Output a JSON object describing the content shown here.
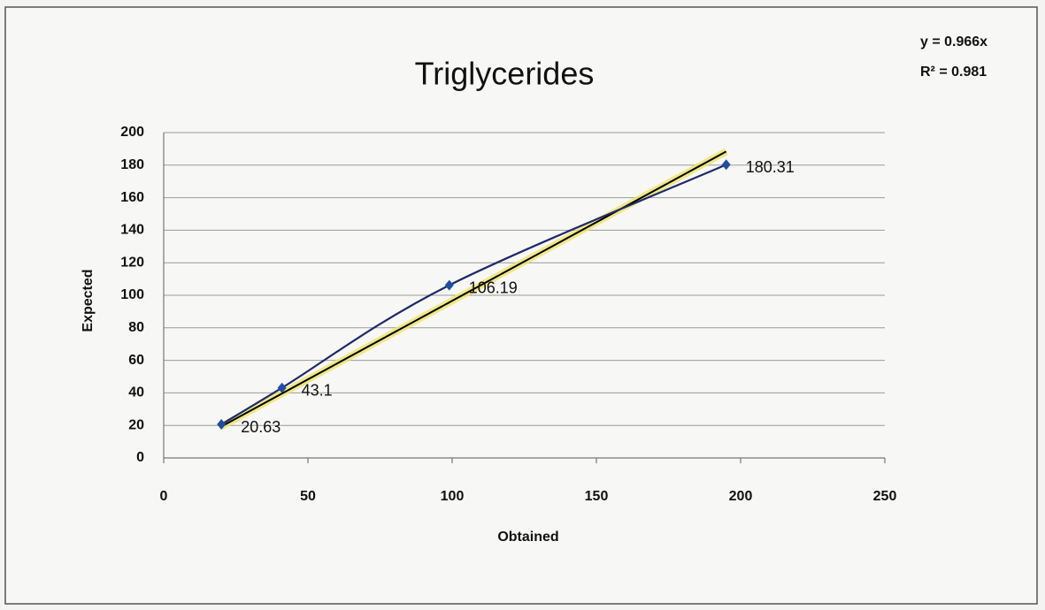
{
  "chart_data": {
    "type": "scatter",
    "title": "Triglycerides",
    "x_label": "Obtained",
    "y_label": "Expected",
    "x": [
      20,
      41,
      99,
      195
    ],
    "series": [
      {
        "name": "Expected",
        "color": "#1f2a6b",
        "marker_color": "#1f4fa0",
        "values": [
          20.63,
          43.1,
          106.19,
          180.31
        ],
        "value_labels": [
          "20.63",
          "43.1",
          "106.19",
          "180.31"
        ]
      }
    ],
    "trendline": {
      "equation": "y = 0.966x",
      "slope": 0.966,
      "r2_label": "R² = 0.981",
      "color": "#000000"
    },
    "xlim": [
      0,
      250
    ],
    "xticks": [
      0,
      50,
      100,
      150,
      200,
      250
    ],
    "ylim": [
      0,
      200
    ],
    "yticks": [
      0,
      20,
      40,
      60,
      80,
      100,
      120,
      140,
      160,
      180,
      200
    ],
    "grid": true,
    "smooth": true
  }
}
